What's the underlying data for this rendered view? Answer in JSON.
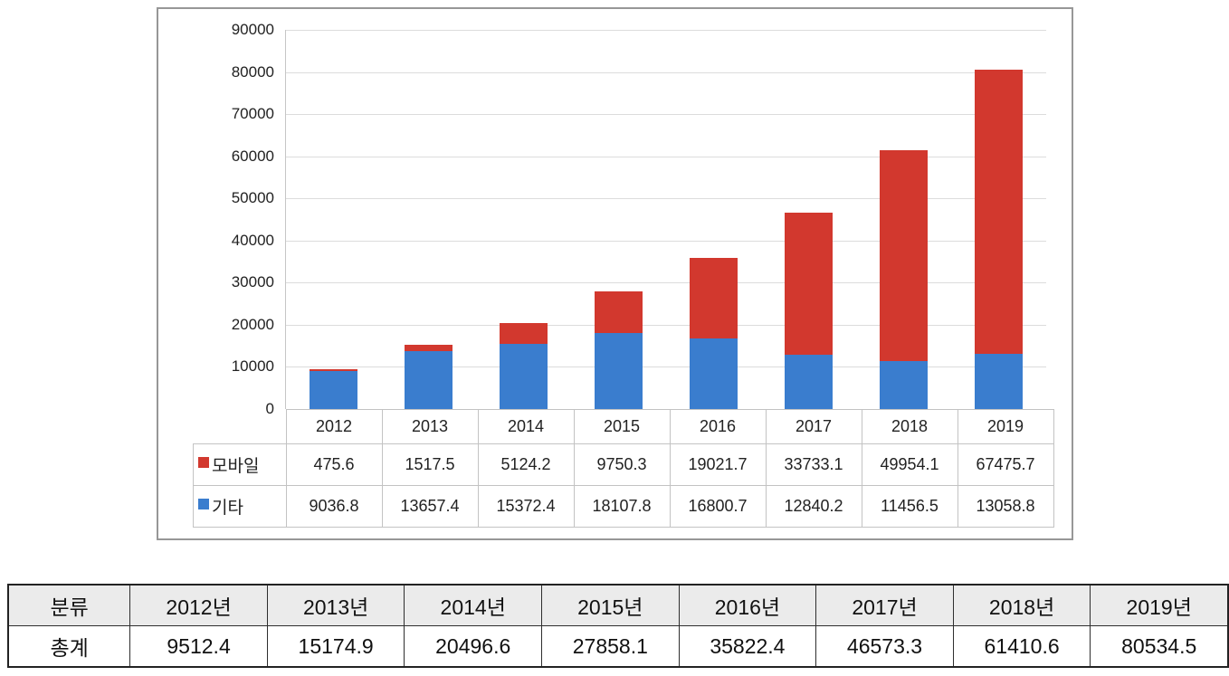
{
  "colors": {
    "mobile_red": "#d2382e",
    "other_blue": "#3a7dce",
    "gridline": "#dcdcdc",
    "axis_line": "#c6c6c6",
    "chart_frame_border": "#979797",
    "chart_table_border": "#c3c3c3",
    "summary_border": "#2e2e2e",
    "summary_header_bg": "#ebebeb"
  },
  "chart_data": {
    "type": "bar",
    "stacked": true,
    "title": "",
    "xlabel": "",
    "ylabel": "",
    "ylim": [
      0,
      90000
    ],
    "ytick_step": 10000,
    "yticks": [
      0,
      10000,
      20000,
      30000,
      40000,
      50000,
      60000,
      70000,
      80000,
      90000
    ],
    "grid": true,
    "legend_position": "data-table-left",
    "categories": [
      "2012",
      "2013",
      "2014",
      "2015",
      "2016",
      "2017",
      "2018",
      "2019"
    ],
    "series": [
      {
        "name": "모바일",
        "color": "#d2382e",
        "stack_order": "top",
        "values": [
          475.6,
          1517.5,
          5124.2,
          9750.3,
          19021.7,
          33733.1,
          49954.1,
          67475.7
        ]
      },
      {
        "name": "기타",
        "color": "#3a7dce",
        "stack_order": "bottom",
        "values": [
          9036.8,
          13657.4,
          15372.4,
          18107.8,
          16800.7,
          12840.2,
          11456.5,
          13058.8
        ]
      }
    ]
  },
  "summary_table": {
    "headers": [
      "분류",
      "2012년",
      "2013년",
      "2014년",
      "2015년",
      "2016년",
      "2017년",
      "2018년",
      "2019년"
    ],
    "rows": [
      [
        "총계",
        "9512.4",
        "15174.9",
        "20496.6",
        "27858.1",
        "35822.4",
        "46573.3",
        "61410.6",
        "80534.5"
      ]
    ]
  }
}
